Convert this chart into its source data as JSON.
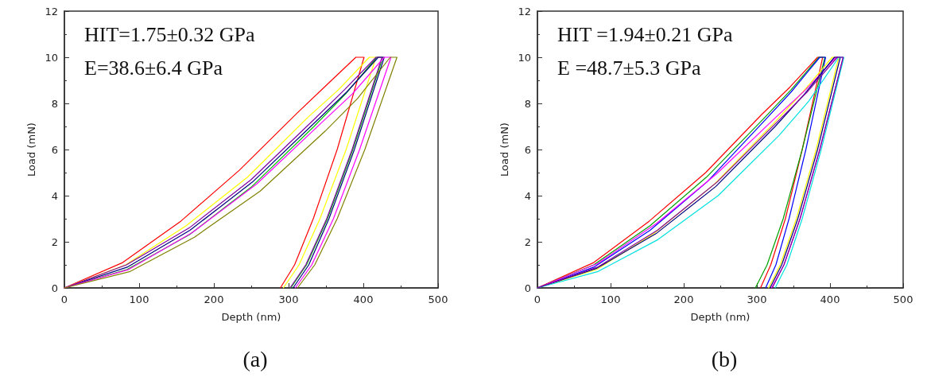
{
  "chart_data": [
    {
      "type": "line",
      "title": "(a)",
      "xlabel": "Depth (nm)",
      "ylabel": "Load (mN)",
      "annotations": [
        "HIT=1.75±0.32 GPa",
        "E=38.6±6.4 GPa"
      ],
      "xlim": [
        0,
        500
      ],
      "xticks": [
        0,
        100,
        200,
        300,
        400,
        500
      ],
      "ylim": [
        0,
        12
      ],
      "yticks": [
        0,
        2,
        4,
        6,
        8,
        10,
        12
      ],
      "grid": false,
      "marker": "none",
      "line_style": "solid",
      "series": [
        {
          "color": "#ff0000",
          "x": [
            0,
            78,
            156,
            234,
            312,
            351,
            390,
            401,
            365,
            333,
            308,
            289
          ],
          "values": [
            0,
            1.1,
            2.9,
            5.1,
            7.6,
            8.8,
            10,
            10,
            6,
            3,
            1,
            0
          ]
        },
        {
          "color": "#ffff00",
          "x": [
            0,
            82,
            163,
            245,
            326,
            367,
            408,
            417,
            377,
            342,
            314,
            293
          ],
          "values": [
            0,
            1.0,
            2.7,
            4.8,
            7.4,
            8.6,
            10,
            10,
            6,
            3,
            1,
            0
          ]
        },
        {
          "color": "#00c000",
          "x": [
            0,
            84,
            167,
            251,
            334,
            376,
            418,
            426,
            386,
            352,
            324,
            303
          ],
          "values": [
            0,
            0.8,
            2.3,
            4.4,
            7.0,
            8.4,
            10,
            10,
            6,
            3,
            1,
            0
          ]
        },
        {
          "color": "#000080",
          "x": [
            0,
            84,
            168,
            252,
            336,
            378,
            420,
            428,
            388,
            354,
            327,
            306
          ],
          "values": [
            0,
            0.9,
            2.5,
            4.6,
            7.2,
            8.5,
            10,
            10,
            6,
            3,
            1,
            0
          ]
        },
        {
          "color": "#8000a0",
          "x": [
            0,
            83,
            167,
            250,
            334,
            375,
            417,
            425,
            385,
            351,
            323,
            302
          ],
          "values": [
            0,
            1.0,
            2.6,
            4.7,
            7.3,
            8.6,
            10,
            10,
            6,
            3,
            1,
            0
          ]
        },
        {
          "color": "#ff00ff",
          "x": [
            0,
            86,
            171,
            257,
            342,
            385,
            428,
            437,
            395,
            360,
            331,
            309
          ],
          "values": [
            0,
            0.8,
            2.4,
            4.5,
            7.1,
            8.4,
            10,
            10,
            6,
            3,
            1,
            0
          ]
        },
        {
          "color": "#808000",
          "x": [
            0,
            87,
            174,
            262,
            349,
            392,
            436,
            445,
            402,
            365,
            335,
            312
          ],
          "values": [
            0,
            0.7,
            2.2,
            4.2,
            6.8,
            8.2,
            10,
            10,
            6,
            3,
            1,
            0
          ]
        }
      ]
    },
    {
      "type": "line",
      "title": "(b)",
      "xlabel": "Depth (nm)",
      "ylabel": "Load (mN)",
      "annotations": [
        "HIT =1.94±0.21 GPa",
        "E =48.7±5.3 GPa"
      ],
      "xlim": [
        0,
        500
      ],
      "xticks": [
        0,
        100,
        200,
        300,
        400,
        500
      ],
      "ylim": [
        0,
        12
      ],
      "yticks": [
        0,
        2,
        4,
        6,
        8,
        10,
        12
      ],
      "grid": false,
      "marker": "none",
      "line_style": "solid",
      "series": [
        {
          "color": "#ff0000",
          "x": [
            0,
            77,
            153,
            230,
            306,
            345,
            383,
            390,
            362,
            339,
            319,
            305
          ],
          "values": [
            0,
            1.1,
            2.9,
            5.0,
            7.5,
            8.7,
            10,
            10,
            6,
            3,
            1,
            0
          ]
        },
        {
          "color": "#00a000",
          "x": [
            0,
            77,
            154,
            231,
            308,
            347,
            385,
            393,
            362,
            336,
            314,
            298
          ],
          "values": [
            0,
            1.0,
            2.7,
            4.8,
            7.3,
            8.6,
            10,
            10,
            6,
            3,
            1,
            0
          ]
        },
        {
          "color": "#0000ff",
          "x": [
            0,
            77,
            154,
            232,
            309,
            347,
            386,
            394,
            367,
            344,
            326,
            312
          ],
          "values": [
            0,
            0.9,
            2.5,
            4.6,
            7.2,
            8.5,
            10,
            10,
            6,
            3,
            1,
            0
          ]
        },
        {
          "color": "#ffff00",
          "x": [
            0,
            81,
            161,
            242,
            322,
            363,
            403,
            412,
            381,
            354,
            332,
            316
          ],
          "values": [
            0,
            0.8,
            2.4,
            4.5,
            7.1,
            8.5,
            10,
            10,
            6,
            3,
            1,
            0
          ]
        },
        {
          "color": "#ff00ff",
          "x": [
            0,
            82,
            163,
            245,
            326,
            367,
            408,
            418,
            386,
            359,
            337,
            320
          ],
          "values": [
            0,
            1.05,
            2.8,
            4.95,
            7.4,
            8.6,
            10,
            10,
            6,
            3,
            1,
            0
          ]
        },
        {
          "color": "#000080",
          "x": [
            0,
            81,
            162,
            244,
            325,
            365,
            406,
            414,
            383,
            356,
            334,
            318
          ],
          "values": [
            0,
            0.85,
            2.35,
            4.4,
            7.0,
            8.4,
            10,
            10,
            6,
            3,
            1,
            0
          ]
        },
        {
          "color": "#00e0e0",
          "x": [
            0,
            82,
            165,
            247,
            330,
            371,
            412,
            419,
            388,
            362,
            341,
            325
          ],
          "values": [
            0,
            0.7,
            2.1,
            4.0,
            6.6,
            8.1,
            10,
            10,
            6,
            3,
            1,
            0
          ]
        },
        {
          "color": "#8000a0",
          "x": [
            0,
            82,
            164,
            246,
            328,
            369,
            410,
            418,
            386,
            359,
            337,
            321
          ],
          "values": [
            0,
            0.9,
            2.5,
            4.6,
            7.2,
            8.5,
            10,
            10,
            6,
            3,
            1,
            0
          ]
        }
      ]
    }
  ]
}
